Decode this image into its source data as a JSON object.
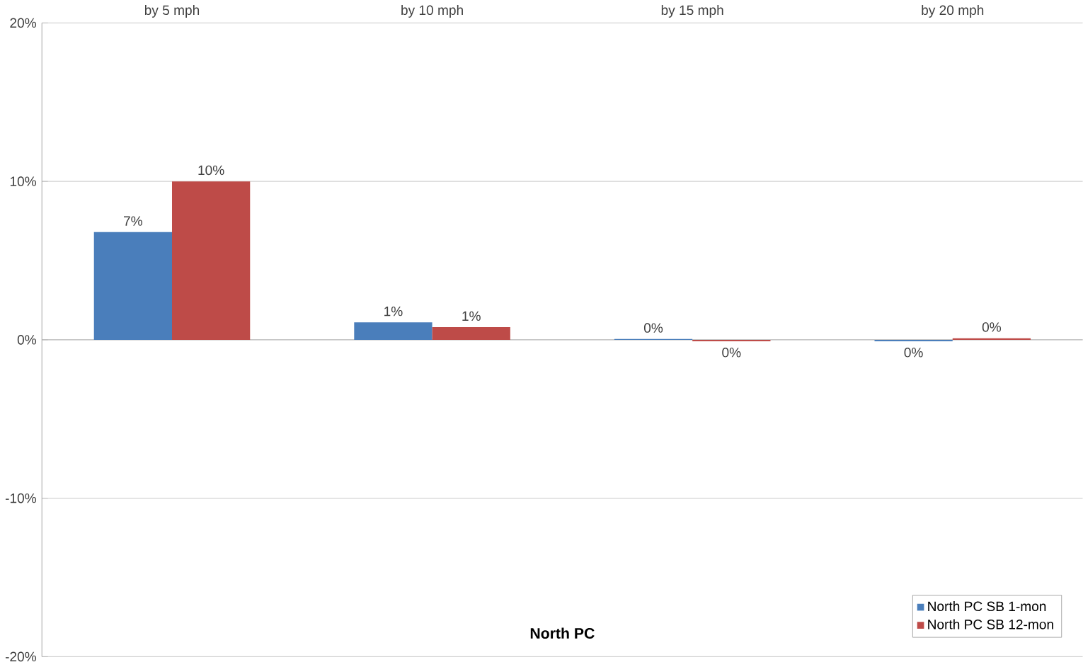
{
  "chart_data": {
    "type": "bar",
    "title": "North PC",
    "categories": [
      "by 5 mph",
      "by 10 mph",
      "by 15 mph",
      "by 20 mph"
    ],
    "series": [
      {
        "name": "North PC SB 1-mon",
        "color": "#4a7ebb",
        "values": [
          6.8,
          1.1,
          0.05,
          -0.1
        ],
        "value_labels": [
          "7%",
          "1%",
          "0%",
          "0%"
        ]
      },
      {
        "name": "North PC SB 12-mon",
        "color": "#be4b48",
        "values": [
          10.0,
          0.8,
          -0.1,
          0.1
        ],
        "value_labels": [
          "10%",
          "1%",
          "0%",
          "0%"
        ]
      }
    ],
    "ylim": [
      -20,
      20
    ],
    "yticks": [
      {
        "value": -20,
        "label": "-20%"
      },
      {
        "value": -10,
        "label": "-10%"
      },
      {
        "value": 0,
        "label": "0%"
      },
      {
        "value": 10,
        "label": "10%"
      },
      {
        "value": 20,
        "label": "20%"
      }
    ],
    "grid": "y",
    "legend": "bottom right"
  }
}
